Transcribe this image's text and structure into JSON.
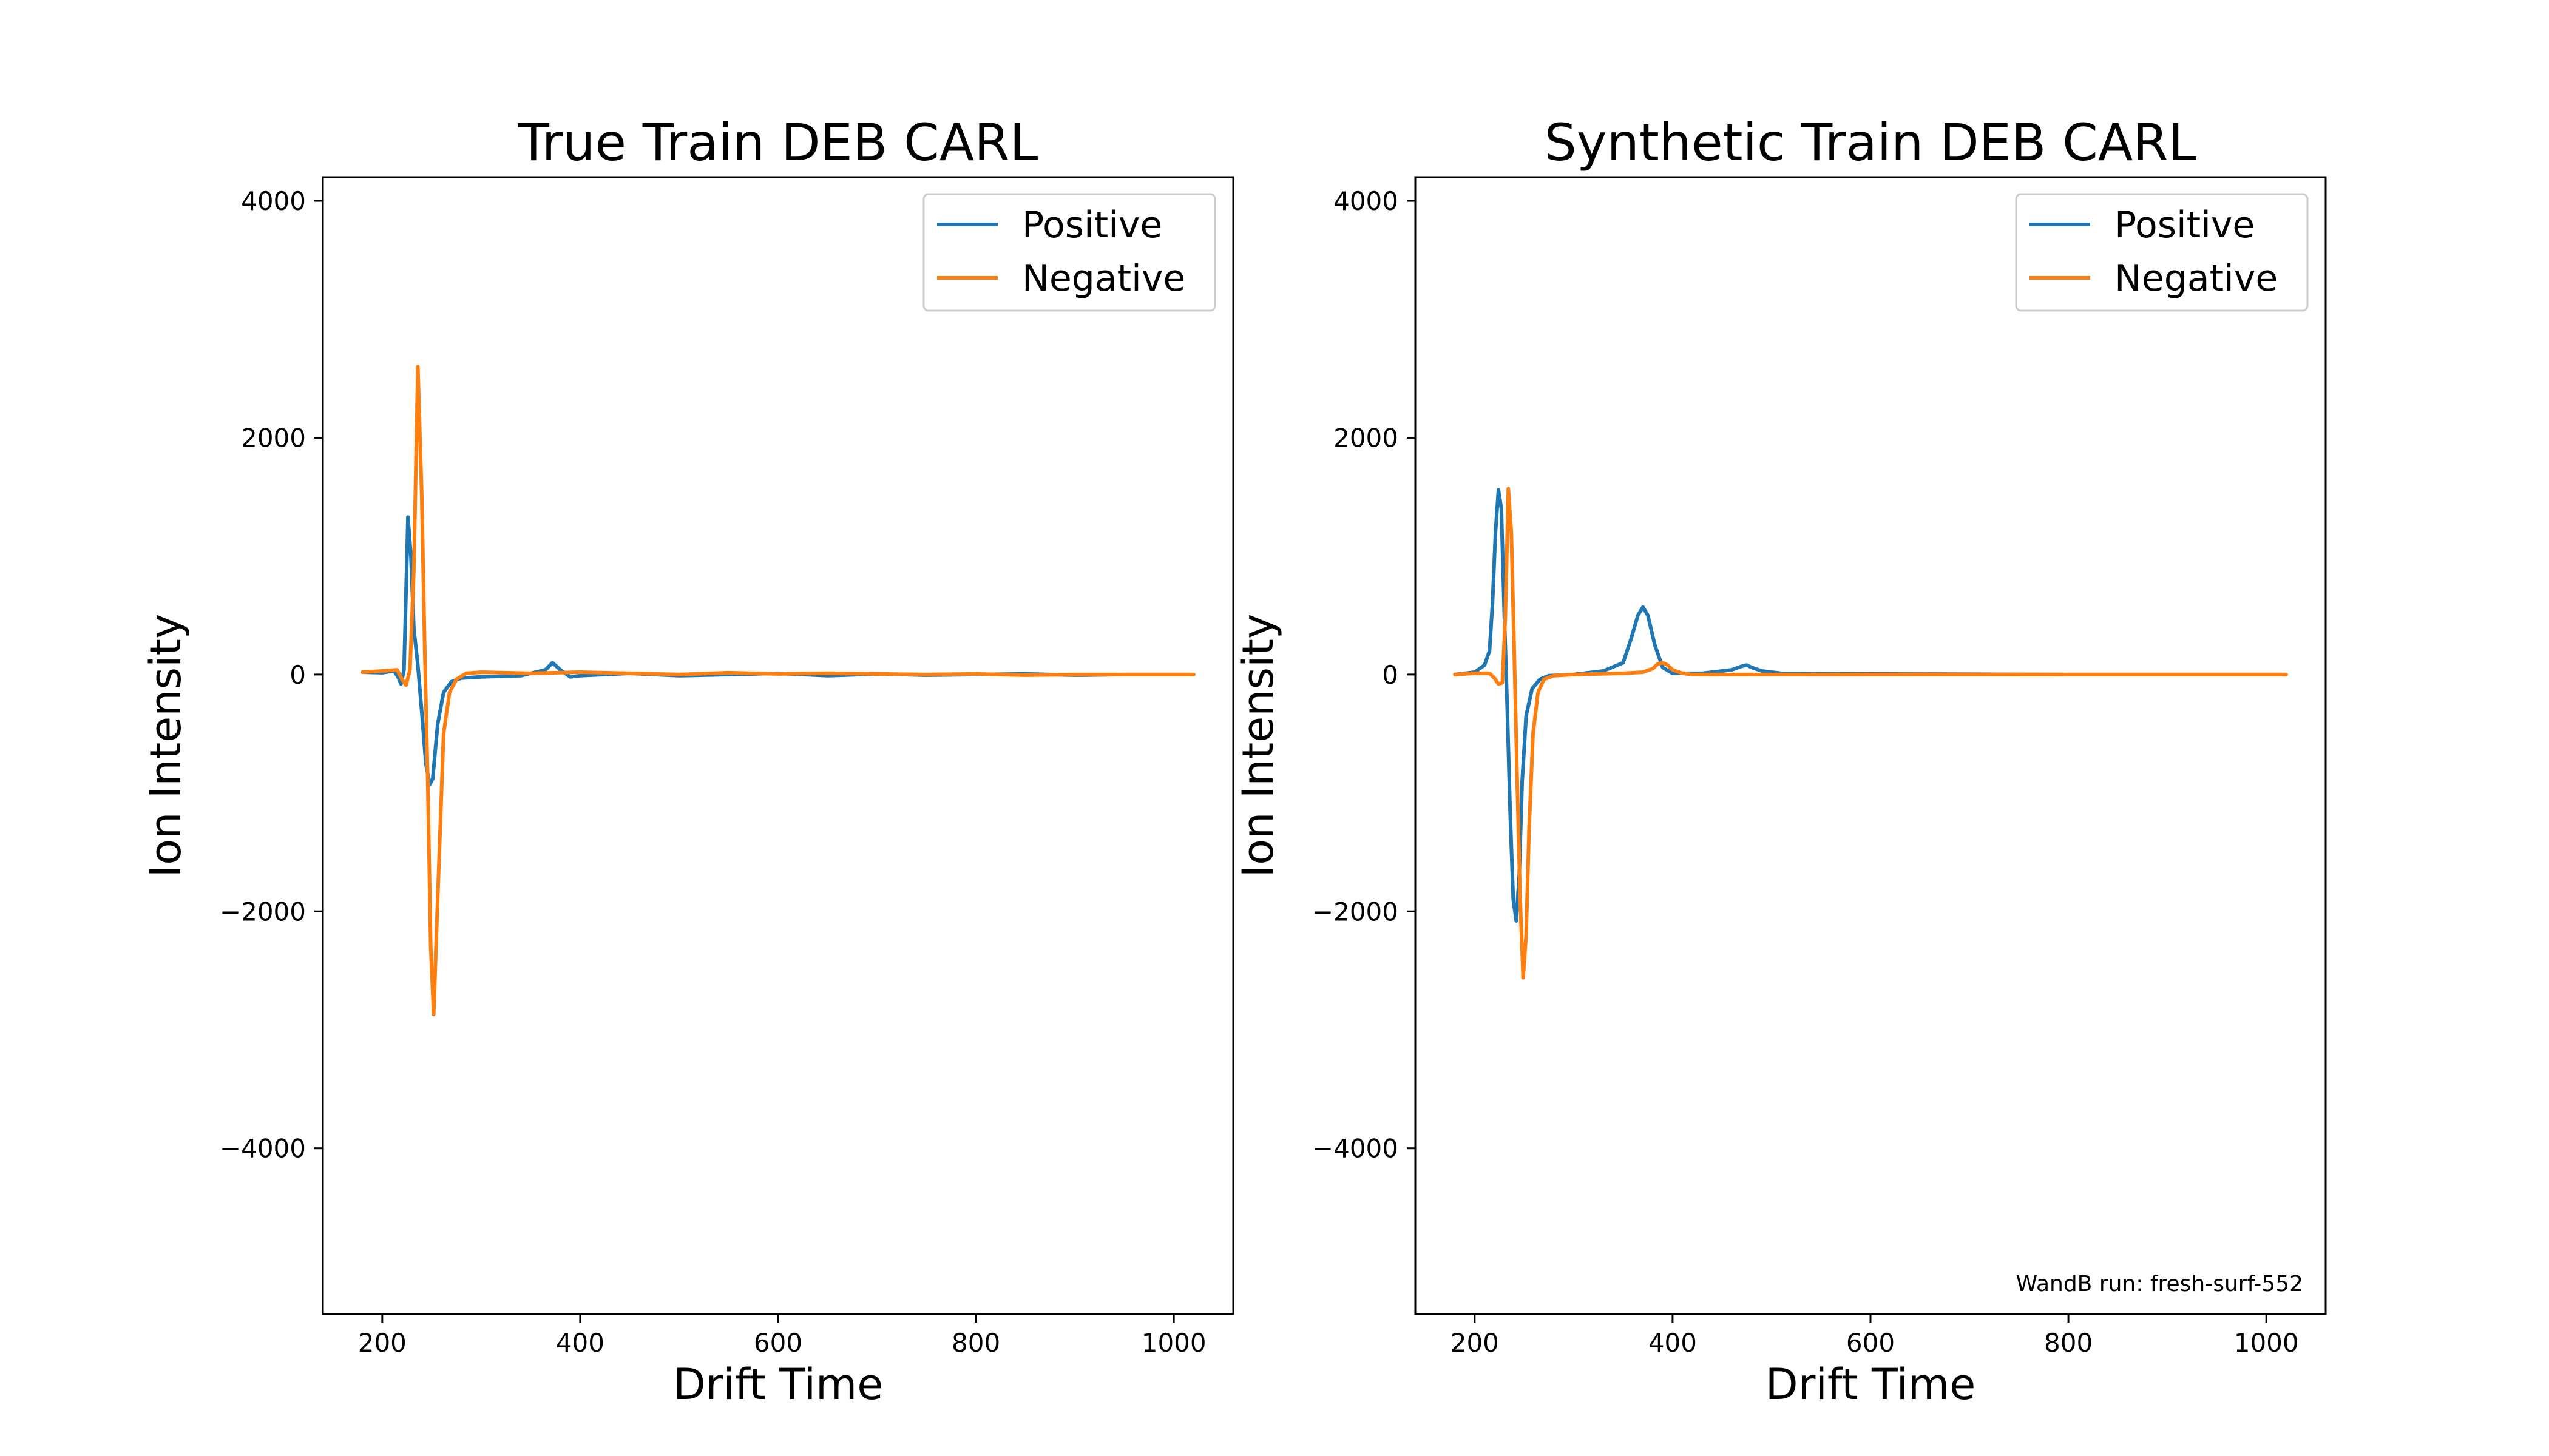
{
  "figure": {
    "annotation": "WandB run: fresh-surf-552"
  },
  "colors": {
    "positive": "#1f77b4",
    "negative": "#ff7f0e",
    "axes": "#000000",
    "background": "#ffffff"
  },
  "chart_data": [
    {
      "type": "line",
      "title": "True Train DEB CARL",
      "xlabel": "Drift Time",
      "ylabel": "Ion Intensity",
      "xlim": [
        140,
        1060
      ],
      "ylim": [
        -5400,
        4200
      ],
      "xticks": [
        200,
        400,
        600,
        800,
        1000
      ],
      "yticks": [
        4000,
        2000,
        0,
        -2000,
        -4000
      ],
      "xtick_labels": [
        "200",
        "400",
        "600",
        "800",
        "1000"
      ],
      "ytick_labels": [
        "4000",
        "2000",
        "0",
        "−2000",
        "−4000"
      ],
      "grid": false,
      "legend": "top-right",
      "series": [
        {
          "name": "Positive",
          "x": [
            180,
            200,
            212,
            216,
            219,
            222,
            226,
            229,
            232,
            236,
            240,
            244,
            248,
            251,
            256,
            262,
            270,
            280,
            300,
            340,
            365,
            372,
            380,
            390,
            400,
            450,
            500,
            550,
            600,
            650,
            700,
            750,
            800,
            850,
            900,
            950,
            1000,
            1020
          ],
          "y": [
            20,
            15,
            30,
            -20,
            -80,
            40,
            1330,
            1000,
            380,
            80,
            -320,
            -750,
            -930,
            -880,
            -420,
            -150,
            -60,
            -30,
            -20,
            -10,
            40,
            100,
            40,
            -20,
            -10,
            10,
            -10,
            0,
            10,
            -10,
            5,
            -5,
            0,
            5,
            -5,
            0,
            0,
            0
          ]
        },
        {
          "name": "Negative",
          "x": [
            180,
            200,
            215,
            220,
            224,
            228,
            232,
            236,
            240,
            243,
            246,
            249,
            252,
            256,
            262,
            268,
            275,
            285,
            300,
            350,
            400,
            450,
            500,
            550,
            600,
            650,
            700,
            750,
            800,
            850,
            900,
            950,
            1000,
            1020
          ],
          "y": [
            20,
            30,
            40,
            -40,
            -90,
            40,
            900,
            2600,
            1500,
            200,
            -900,
            -2300,
            -2870,
            -1900,
            -500,
            -150,
            -40,
            10,
            20,
            10,
            20,
            10,
            0,
            15,
            5,
            10,
            5,
            0,
            5,
            -5,
            0,
            0,
            0,
            0
          ]
        }
      ]
    },
    {
      "type": "line",
      "title": "Synthetic Train DEB CARL",
      "xlabel": "Drift Time",
      "ylabel": "Ion Intensity",
      "xlim": [
        140,
        1060
      ],
      "ylim": [
        -5400,
        4200
      ],
      "xticks": [
        200,
        400,
        600,
        800,
        1000
      ],
      "yticks": [
        4000,
        2000,
        0,
        -2000,
        -4000
      ],
      "xtick_labels": [
        "200",
        "400",
        "600",
        "800",
        "1000"
      ],
      "ytick_labels": [
        "4000",
        "2000",
        "0",
        "−2000",
        "−4000"
      ],
      "grid": false,
      "legend": "top-right",
      "series": [
        {
          "name": "Positive",
          "x": [
            180,
            200,
            210,
            215,
            218,
            221,
            224,
            227,
            230,
            233,
            236,
            239,
            242,
            245,
            248,
            252,
            258,
            266,
            275,
            300,
            330,
            350,
            358,
            365,
            370,
            375,
            382,
            390,
            400,
            430,
            460,
            470,
            475,
            480,
            490,
            510,
            600,
            800,
            1000,
            1020
          ],
          "y": [
            0,
            20,
            80,
            200,
            600,
            1200,
            1560,
            1400,
            500,
            -300,
            -1200,
            -1900,
            -2080,
            -1700,
            -900,
            -350,
            -120,
            -40,
            -10,
            0,
            30,
            100,
            300,
            500,
            570,
            500,
            250,
            60,
            10,
            10,
            40,
            70,
            80,
            60,
            30,
            10,
            5,
            0,
            0,
            0
          ]
        },
        {
          "name": "Negative",
          "x": [
            180,
            200,
            215,
            220,
            224,
            228,
            231,
            234,
            237,
            240,
            243,
            246,
            249,
            252,
            255,
            259,
            264,
            270,
            280,
            300,
            350,
            370,
            380,
            385,
            390,
            395,
            400,
            410,
            420,
            500,
            700,
            1000,
            1020
          ],
          "y": [
            0,
            10,
            10,
            -30,
            -80,
            -70,
            500,
            1570,
            1200,
            200,
            -900,
            -1900,
            -2560,
            -2200,
            -1300,
            -500,
            -150,
            -40,
            -10,
            0,
            10,
            20,
            50,
            90,
            100,
            80,
            40,
            10,
            0,
            0,
            0,
            0,
            0
          ]
        }
      ]
    }
  ]
}
